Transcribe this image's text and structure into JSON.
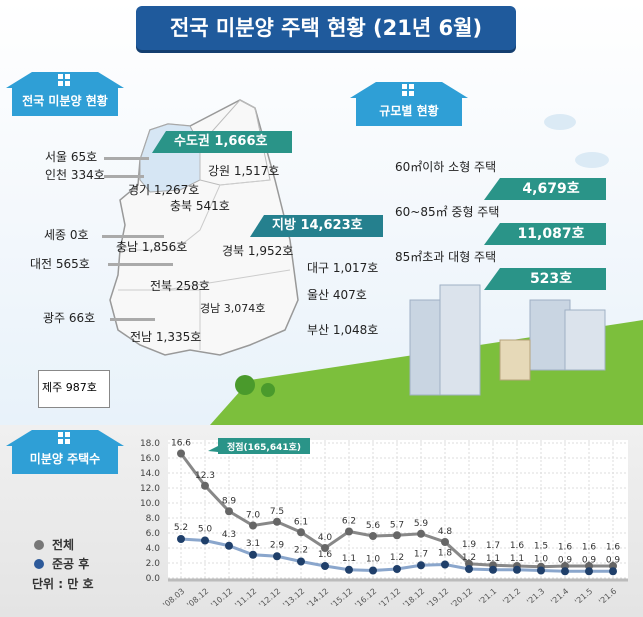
{
  "title": "전국 미분양 주택 현황 (21년 6월)",
  "national": {
    "header": "전국 미분양 현황",
    "capital_banner": "수도권 1,666호",
    "local_banner": "지방 14,623호",
    "regions": {
      "seoul": "서울 65호",
      "incheon": "인천 334호",
      "gyeonggi": "경기 1,267호",
      "gangwon": "강원 1,517호",
      "chungbuk": "충북 541호",
      "sejong": "세종 0호",
      "chungnam": "충남 1,856호",
      "daejeon": "대전 565호",
      "gyeongbuk": "경북 1,952호",
      "daegu": "대구 1,017호",
      "jeonbuk": "전북 258호",
      "ulsan": "울산 407호",
      "gyeongnam": "경남 3,074호",
      "gwangju": "광주 66호",
      "busan": "부산 1,048호",
      "jeonnam": "전남 1,335호",
      "jeju": "제주 987호"
    }
  },
  "size": {
    "header": "규모별 현황",
    "items": [
      {
        "label": "60㎡이하 소형 주택",
        "value": "4,679호"
      },
      {
        "label": "60~85㎡ 중형 주택",
        "value": "11,087호"
      },
      {
        "label": "85㎡초과 대형 주택",
        "value": "523호"
      }
    ]
  },
  "trend": {
    "header": "미분양 주택수",
    "unit": "단위 : 만 호"
  },
  "chart_data": {
    "type": "line",
    "categories": [
      "'08.03",
      "'08.12",
      "'10.12",
      "'11.12",
      "'12.12",
      "'13.12",
      "'14.12",
      "'15.12",
      "'16.12",
      "'17.12",
      "'18.12",
      "'19.12",
      "'20.12",
      "'21.1",
      "'21.2",
      "'21.3",
      "'21.4",
      "'21.5",
      "'21.6"
    ],
    "series": [
      {
        "name": "전체",
        "color": "#666666",
        "values": [
          16.6,
          12.3,
          8.9,
          7.0,
          7.5,
          6.1,
          4.0,
          6.2,
          5.6,
          5.7,
          5.9,
          4.8,
          1.9,
          1.7,
          1.6,
          1.5,
          1.6,
          1.6,
          1.6
        ]
      },
      {
        "name": "준공 후",
        "color": "#1f3f6a",
        "values": [
          5.2,
          5.0,
          4.3,
          3.1,
          2.9,
          2.2,
          1.6,
          1.1,
          1.0,
          1.2,
          1.7,
          1.8,
          1.2,
          1.1,
          1.1,
          1.0,
          0.9,
          0.9,
          0.9
        ]
      }
    ],
    "yticks": [
      "0.0",
      "2.0",
      "4.0",
      "6.0",
      "8.0",
      "10.0",
      "12.0",
      "14.0",
      "16.0",
      "18.0"
    ],
    "ylim": [
      0,
      18
    ],
    "grid": true,
    "annotation": "정점(165,641호)",
    "legend_position": "left"
  }
}
